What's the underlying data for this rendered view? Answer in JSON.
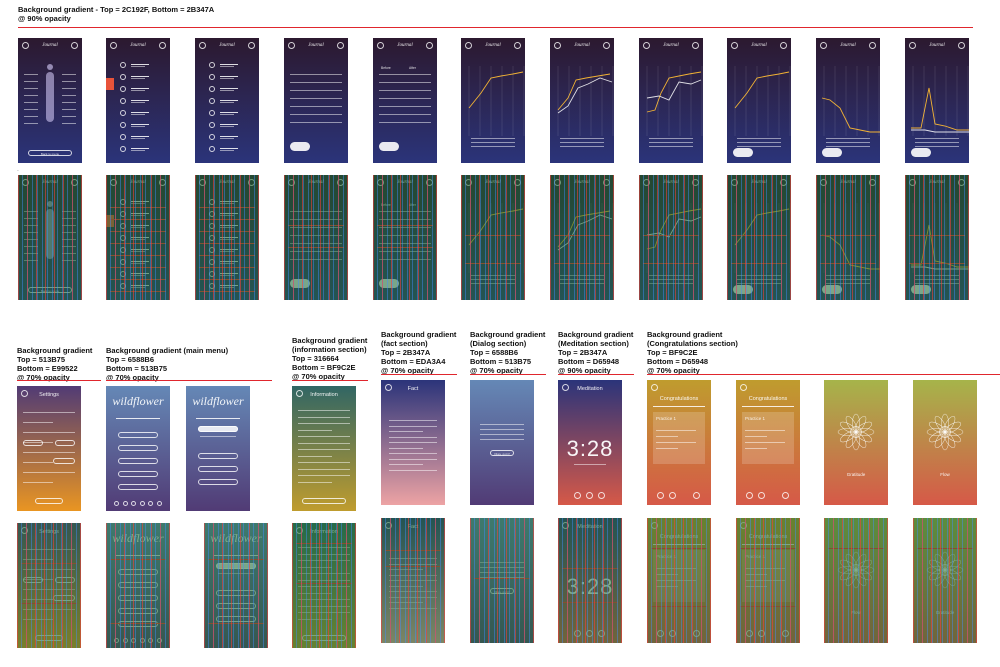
{
  "sections": {
    "top": {
      "title": "Background gradient - Top = 2C192F, Bottom = 2B347A",
      "opacity": "@ 90% opacity"
    },
    "settings": {
      "lines": [
        "Background gradient",
        "Top = 513B75",
        "Bottom = E99522",
        "@ 70% opacity"
      ]
    },
    "menu": {
      "lines": [
        "Background gradient (main menu)",
        "Top = 6588B6",
        "Bottom = 513B75",
        "@ 70% opacity"
      ]
    },
    "info": {
      "lines": [
        "Background gradient",
        "(information section)",
        "Top = 316664",
        "Bottom = BF9C2E",
        "@ 70% opacity"
      ]
    },
    "fact": {
      "lines": [
        "Background gradient",
        "(fact section)",
        "Top = 2B347A",
        "Bottom = EDA3A4",
        "@ 70% opacity"
      ]
    },
    "dialog": {
      "lines": [
        "Background gradient",
        "(Dialog section)",
        "Top = 6588B6",
        "Bottom = 513B75",
        "@ 70% opacity"
      ]
    },
    "meditation": {
      "lines": [
        "Background gradient",
        "(Meditation section)",
        "Top = 2B347A",
        "Bottom = D65948",
        "@ 90% opacity"
      ]
    },
    "congrats": {
      "lines": [
        "Background gradient",
        "(Congratulations section)",
        "Top = BF9C2E",
        "Bottom = D65948",
        "@ 70% opacity"
      ]
    }
  },
  "screens": {
    "journal": "Journal",
    "settings": "Settings",
    "wildflower": "wildflower",
    "information": "Information",
    "fact": "Fact",
    "meditation": "Meditation",
    "timer": "3:28",
    "congratulations": "Congratulations",
    "practice": "Practice 1",
    "gratitude": "Gratitude",
    "flow": "Flow",
    "before": "Before",
    "after": "After",
    "back_to_menu": "Back to menu",
    "okay": "Okay, got it!"
  },
  "colors": {
    "night_top": "#2C192F",
    "night_bottom": "#2B347A",
    "settings_top": "#513B75",
    "settings_bottom": "#E99522",
    "menu_top": "#6588B6",
    "menu_bottom": "#513B75",
    "info_top": "#316664",
    "info_bottom": "#BF9C2E",
    "fact_top": "#2B347A",
    "fact_bottom": "#EDA3A4",
    "med_top": "#2B347A",
    "med_bottom": "#D65948",
    "cong_top": "#BF9C2E",
    "cong_bottom": "#D65948",
    "grid_overlay": "#1f6b35",
    "accent_red": "#E0262D"
  }
}
